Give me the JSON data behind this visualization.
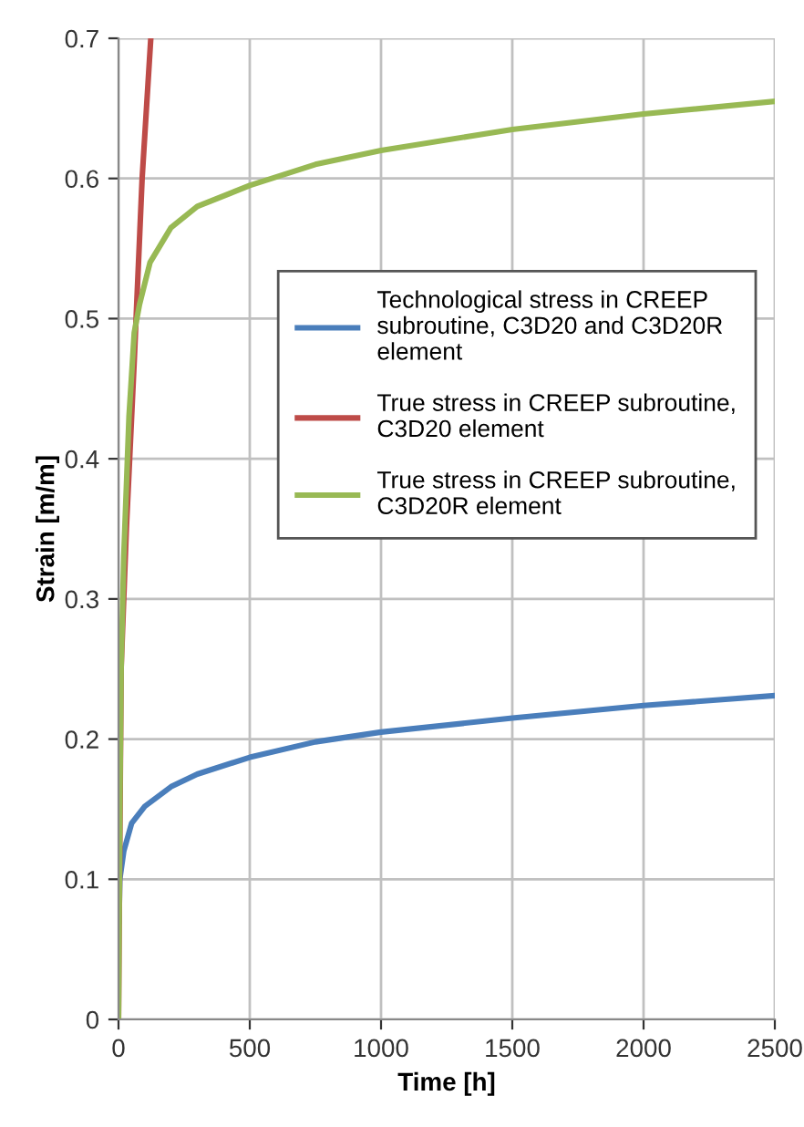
{
  "chart_data": {
    "type": "line",
    "xlabel": "Time [h]",
    "ylabel": "Strain [m/m]",
    "xlim": [
      0,
      2500
    ],
    "xticks": [
      0,
      500,
      1000,
      1500,
      2000,
      2500
    ],
    "ylim": [
      0,
      0.7
    ],
    "yticks": [
      0,
      0.1,
      0.2,
      0.3,
      0.4,
      0.5,
      0.6,
      0.7
    ],
    "grid": true,
    "legend": "top right",
    "marker": "none",
    "line_style": "solid",
    "series": [
      {
        "name": "Technological stress in CREEP subroutine, C3D20 and C3D20R element",
        "color": "#4a7ebb",
        "x": [
          2,
          5,
          20,
          50,
          100,
          200,
          300,
          500,
          750,
          1000,
          1500,
          2000,
          2500
        ],
        "values": [
          0.07,
          0.1,
          0.12,
          0.14,
          0.152,
          0.166,
          0.175,
          0.187,
          0.198,
          0.205,
          0.215,
          0.224,
          0.231
        ]
      },
      {
        "name": "True stress in CREEP subroutine, C3D20 element",
        "color": "#be4b48",
        "x": [
          0,
          10,
          30,
          60,
          90,
          123
        ],
        "values": [
          0,
          0.25,
          0.35,
          0.47,
          0.6,
          0.7
        ]
      },
      {
        "name": "True stress in CREEP subroutine, C3D20R element",
        "color": "#98b954",
        "x": [
          0,
          5,
          10,
          20,
          40,
          60,
          80,
          120,
          200,
          300,
          500,
          750,
          1000,
          1500,
          2000,
          2500
        ],
        "values": [
          0,
          0.15,
          0.25,
          0.33,
          0.43,
          0.49,
          0.51,
          0.54,
          0.565,
          0.58,
          0.595,
          0.61,
          0.62,
          0.635,
          0.646,
          0.655
        ]
      }
    ]
  }
}
